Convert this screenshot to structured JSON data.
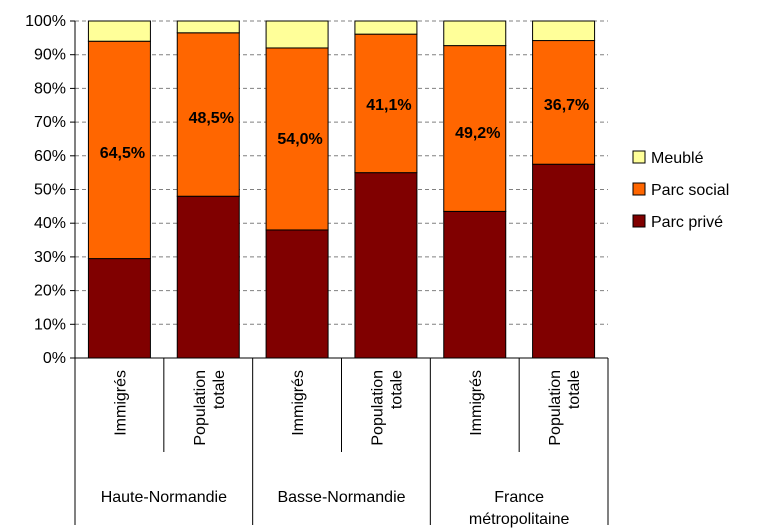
{
  "chart_data": {
    "type": "bar",
    "stacked": true,
    "percent": true,
    "categories": [
      "Immigrés",
      "Population totale",
      "Immigrés",
      "Population totale",
      "Immigrés",
      "Population totale"
    ],
    "groups": [
      "Haute-Normandie",
      "Basse-Normandie",
      "France métropolitaine"
    ],
    "series": [
      {
        "name": "Parc privé",
        "color": "#800000",
        "values": [
          29.5,
          48.0,
          38.0,
          55.0,
          43.5,
          57.5
        ]
      },
      {
        "name": "Parc social",
        "color": "#FF6600",
        "values": [
          64.5,
          48.5,
          54.0,
          41.1,
          49.2,
          36.7
        ]
      },
      {
        "name": "Meublé",
        "color": "#FFFF99",
        "values": [
          6.0,
          3.5,
          8.0,
          3.9,
          7.3,
          5.8
        ]
      }
    ],
    "data_labels": [
      "64,5%",
      "48,5%",
      "54,0%",
      "41,1%",
      "49,2%",
      "36,7%"
    ],
    "y_ticks": [
      "0%",
      "10%",
      "20%",
      "30%",
      "40%",
      "50%",
      "60%",
      "70%",
      "80%",
      "90%",
      "100%"
    ],
    "ylim": [
      0,
      100
    ],
    "grid": true,
    "legend_position": "right",
    "legend_order": [
      "Meublé",
      "Parc social",
      "Parc privé"
    ]
  }
}
